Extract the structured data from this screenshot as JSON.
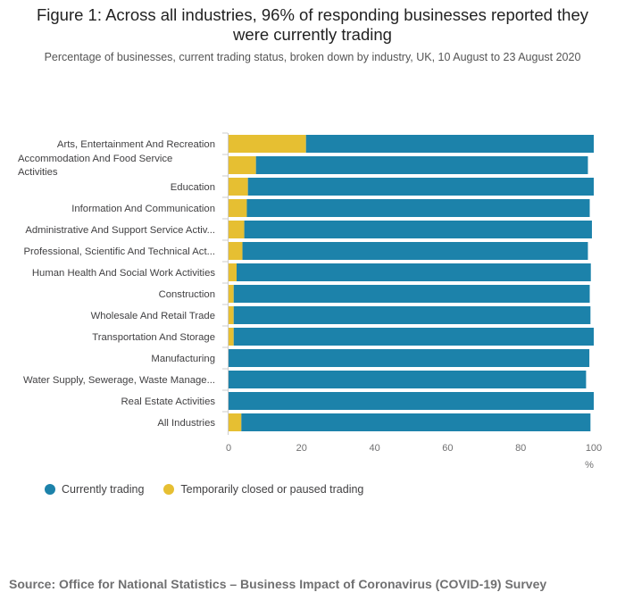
{
  "title": "Figure 1: Across all industries, 96% of responding businesses reported they were currently trading",
  "subtitle": "Percentage of businesses, current trading status, broken down by industry, UK, 10 August to 23 August 2020",
  "source": "Source: Office for National Statistics – Business Impact of Coronavirus (COVID-19) Survey",
  "colors": {
    "trading": "#1C82AA",
    "closed": "#E6BF32"
  },
  "chart_data": {
    "type": "bar",
    "orientation": "horizontal",
    "stacked": true,
    "categories": [
      [
        "Arts, Entertainment And Recreation"
      ],
      [
        "Accommodation And Food Service",
        "Activities"
      ],
      [
        "Education"
      ],
      [
        "Information And Communication"
      ],
      [
        "Administrative And Support Service Activ..."
      ],
      [
        "Professional, Scientific And Technical Act..."
      ],
      [
        "Human Health And Social Work Activities"
      ],
      [
        "Construction"
      ],
      [
        "Wholesale And Retail Trade"
      ],
      [
        "Transportation And Storage"
      ],
      [
        "Manufacturing"
      ],
      [
        "Water Supply, Sewerage, Waste Manage..."
      ],
      [
        "Real Estate Activities"
      ],
      [
        "All Industries"
      ]
    ],
    "series": [
      {
        "name": "Temporarily closed or paused trading",
        "color": "#E6BF32",
        "values": [
          21.2,
          7.5,
          5.3,
          5.0,
          4.3,
          3.8,
          2.2,
          1.4,
          1.4,
          1.4,
          0,
          0,
          0,
          3.5
        ]
      },
      {
        "name": "Currently trading",
        "color": "#1C82AA",
        "values": [
          78.8,
          90.9,
          94.7,
          93.9,
          95.2,
          94.6,
          97.0,
          97.5,
          97.7,
          98.6,
          98.8,
          97.9,
          100.0,
          95.6
        ]
      }
    ],
    "xlim": [
      0,
      100
    ],
    "xticks": [
      "0",
      "20",
      "40",
      "60",
      "80",
      "100"
    ],
    "xlabel": "%",
    "legend": [
      "Currently trading",
      "Temporarily closed or paused trading"
    ],
    "legend_position": "bottom-left"
  }
}
